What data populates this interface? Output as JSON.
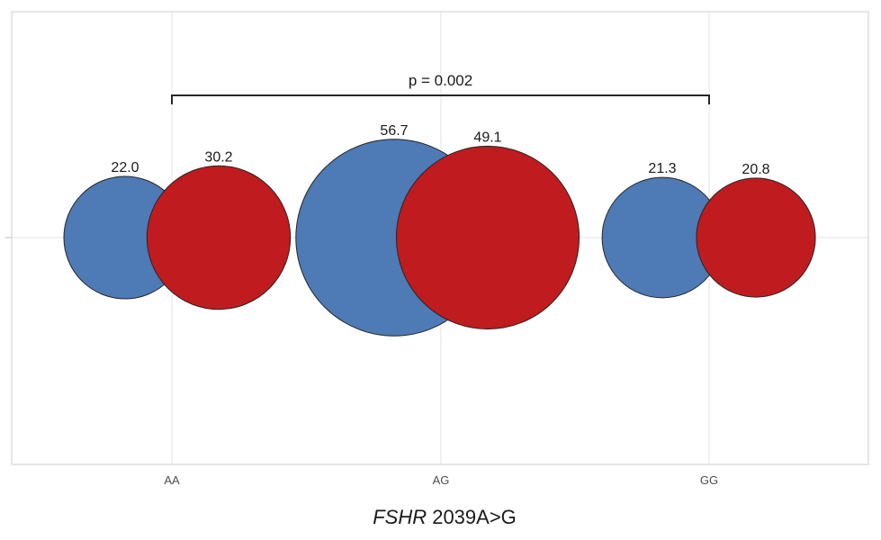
{
  "chart_data": {
    "type": "bubble",
    "title": "",
    "xlabel": {
      "italic": "FSHR",
      "rest": " 2039A>G"
    },
    "ylabel": "",
    "categories": [
      "AA",
      "AG",
      "GG"
    ],
    "grid": true,
    "series": [
      {
        "color": "#4e7ab5",
        "values": [
          22.0,
          56.7,
          21.3
        ]
      },
      {
        "color": "#c01b1e",
        "values": [
          30.2,
          49.1,
          20.8
        ]
      }
    ],
    "annotation": {
      "text": "p = 0.002",
      "from": "AA",
      "to": "GG"
    }
  }
}
